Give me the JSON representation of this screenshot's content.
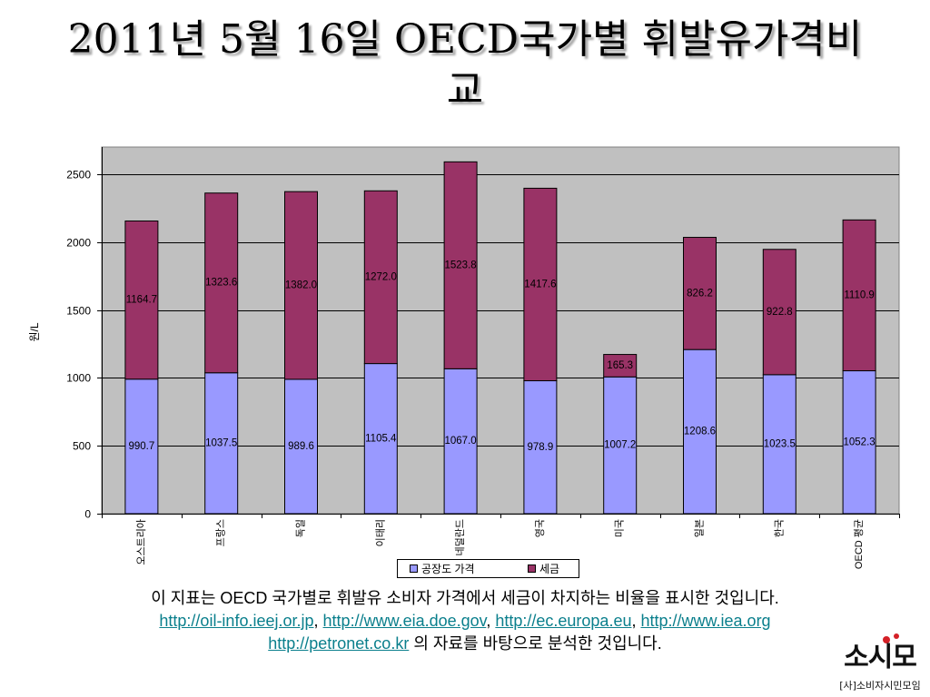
{
  "title_lines": [
    "2011년 5월 16일 OECD국가별 휘발유가격비",
    "교"
  ],
  "chart_data": {
    "type": "bar",
    "stacked": true,
    "categories": [
      "오스트리아",
      "프랑스",
      "독일",
      "이태리",
      "네덜란드",
      "영국",
      "미국",
      "일본",
      "한국",
      "OECD 평균"
    ],
    "series": [
      {
        "name": "공장도 가격",
        "color": "#9999FF",
        "values": [
          990.7,
          1037.5,
          989.6,
          1105.4,
          1067.0,
          978.9,
          1007.2,
          1208.6,
          1023.5,
          1052.3
        ]
      },
      {
        "name": "세금",
        "color": "#993366",
        "values": [
          1164.7,
          1323.6,
          1382.0,
          1272.0,
          1523.8,
          1417.6,
          165.3,
          826.2,
          922.8,
          1110.9
        ]
      }
    ],
    "ylabel": "원/L",
    "ylim": [
      0,
      2700
    ],
    "yticks": [
      0,
      500,
      1000,
      1500,
      2000,
      2500
    ],
    "grid": true,
    "data_labels": true,
    "legend": "bottom",
    "plot_background": "#C0C0C0"
  },
  "note": {
    "line1": "이 지표는 OECD 국가별로 휘발유 소비자 가격에서 세금이 차지하는 비율을 표시한 것입니다.",
    "links": [
      "http://oil-info.ieej.or.jp",
      "http://www.eia.doe.gov",
      "http://ec.europa.eu",
      "http://www.iea.org"
    ],
    "link_separator": ",",
    "last_link": "http://petronet.co.kr",
    "last_suffix": "의 자료를 바탕으로 분석한 것입니다."
  },
  "logo": {
    "mark": "소시모",
    "name": "[사]소비자시민모임",
    "accent_color": "#D42027"
  }
}
